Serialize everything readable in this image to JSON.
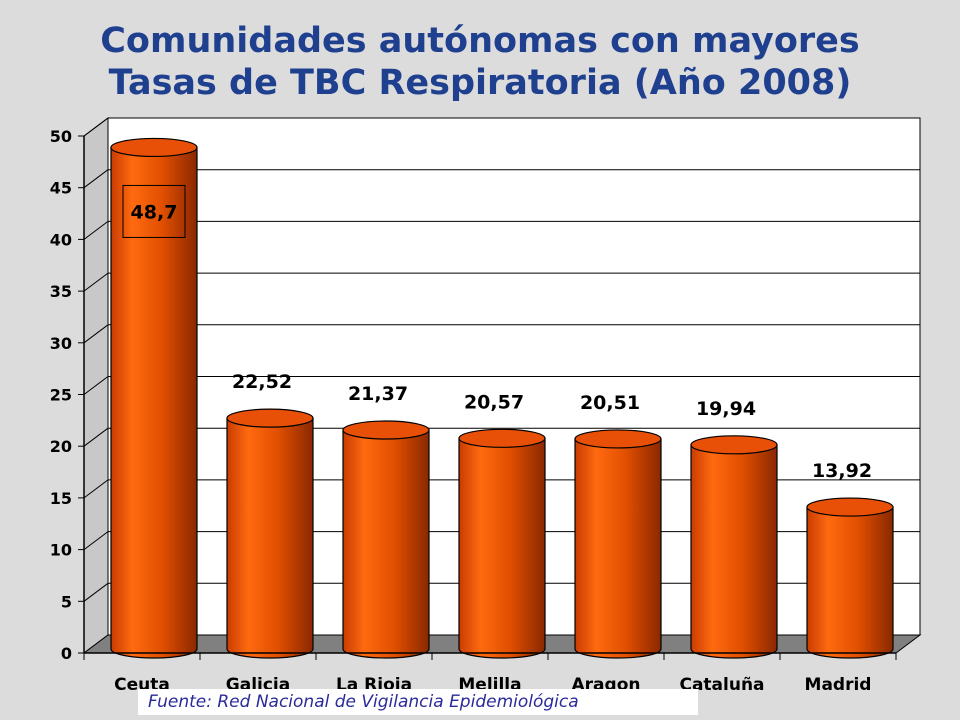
{
  "title": {
    "line1": "Comunidades autónomas con mayores",
    "line2": "Tasas de TBC Respiratoria (Año 2008)"
  },
  "source_note": "Fuente: Red Nacional de Vigilancia Epidemiológica",
  "chart_data": {
    "type": "bar",
    "style": "3d-cylinder",
    "title": "Comunidades autónomas con mayores Tasas de TBC Respiratoria (Año 2008)",
    "categories": [
      "Ceuta",
      "Galicia",
      "La Rioja",
      "Melilla",
      "Aragon",
      "Cataluña",
      "Madrid"
    ],
    "values": [
      48.7,
      22.52,
      21.37,
      20.57,
      20.51,
      19.94,
      13.92
    ],
    "data_labels": [
      "48,7",
      "22,52",
      "21,37",
      "20,57",
      "20,51",
      "19,94",
      "13,92"
    ],
    "ylim": [
      0,
      50
    ],
    "yticks": [
      0,
      5,
      10,
      15,
      20,
      25,
      30,
      35,
      40,
      45,
      50
    ],
    "grid": true,
    "bar_color": "#f05a00",
    "wall_color": "#ffffff",
    "floor_color": "#808080"
  }
}
